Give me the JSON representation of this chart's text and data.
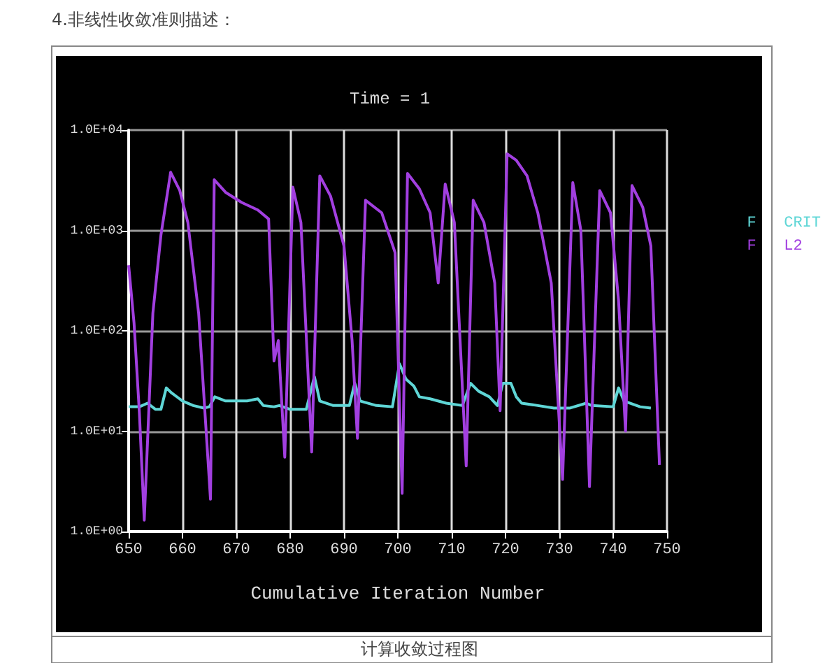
{
  "chart_data": {
    "type": "line",
    "title": "Time = 1",
    "xlabel": "Cumulative Iteration Number",
    "annotations": [
      "4.非线性收敛准则描述：",
      "计算收敛过程图"
    ],
    "log": "y",
    "grid": true,
    "legend": "top right",
    "marker": "none",
    "line_style": "solid",
    "xlim": [
      650,
      750
    ],
    "xticks": [
      650,
      660,
      670,
      680,
      690,
      700,
      710,
      720,
      730,
      740,
      750
    ],
    "ylim": [
      1,
      10000
    ],
    "yticks": [
      {
        "value": 1,
        "label": "1.0E+00"
      },
      {
        "value": 10,
        "label": "1.0E+01"
      },
      {
        "value": 100,
        "label": "1.0E+02"
      },
      {
        "value": 1000,
        "label": "1.0E+03"
      },
      {
        "value": 10000,
        "label": "1.0E+04"
      }
    ],
    "series": [
      {
        "name": "F   CRIT",
        "color": "#5fd6d6",
        "x": [
          650,
          652,
          653.5,
          655,
          656,
          657,
          658,
          660,
          662,
          664,
          665,
          666,
          668,
          672,
          674,
          675,
          677,
          678,
          680,
          683,
          684.5,
          685.5,
          688,
          691,
          692,
          693,
          696,
          699,
          700.3,
          701.5,
          703,
          704,
          706,
          709,
          712,
          713.5,
          715,
          717,
          718.5,
          719.5,
          721,
          722,
          723,
          726,
          729,
          732,
          735,
          736,
          740,
          741,
          742,
          745,
          747
        ],
        "values": [
          17.5,
          17.5,
          19,
          16.5,
          16.5,
          27,
          24,
          20,
          18,
          17,
          17.5,
          22,
          20,
          20,
          21,
          18,
          17.5,
          18,
          16.5,
          16.5,
          35,
          20,
          18,
          18,
          30,
          20,
          18,
          17.5,
          47,
          33,
          28,
          22,
          21,
          19,
          18,
          30,
          25,
          22,
          18,
          30,
          30,
          22,
          19,
          18,
          17,
          17,
          19,
          18,
          17.5,
          27,
          20,
          17.5,
          17
        ]
      },
      {
        "name": "F   L2",
        "color": "#a23fe0",
        "x": [
          650,
          651,
          652,
          652.9,
          654.5,
          656,
          657.8,
          659.5,
          661,
          663,
          665.2,
          665.9,
          668,
          671,
          674,
          676,
          677,
          677.8,
          679,
          680.5,
          682,
          684,
          685.5,
          687.5,
          690,
          691.5,
          692.5,
          694,
          697,
          699.5,
          700.8,
          701.8,
          704,
          706,
          707.5,
          708.8,
          710.5,
          712.7,
          714,
          716,
          718,
          719,
          720.3,
          722,
          724,
          726,
          728.5,
          730.6,
          732.5,
          734,
          735.6,
          737.5,
          739.5,
          741,
          742.3,
          743.5,
          745.5,
          747,
          748.6
        ],
        "values": [
          450,
          120,
          15,
          1.3,
          150,
          900,
          3800,
          2500,
          1200,
          150,
          2.1,
          3200,
          2400,
          1900,
          1600,
          1300,
          50,
          80,
          5.5,
          2700,
          1200,
          6.2,
          3500,
          2200,
          700,
          80,
          8.5,
          2000,
          1500,
          600,
          2.4,
          3700,
          2600,
          1500,
          300,
          2900,
          1200,
          4.5,
          2000,
          1200,
          300,
          16,
          5800,
          5000,
          3500,
          1500,
          300,
          3.3,
          3000,
          1000,
          2.8,
          2500,
          1500,
          200,
          10,
          2800,
          1700,
          700,
          4.6
        ]
      }
    ]
  }
}
